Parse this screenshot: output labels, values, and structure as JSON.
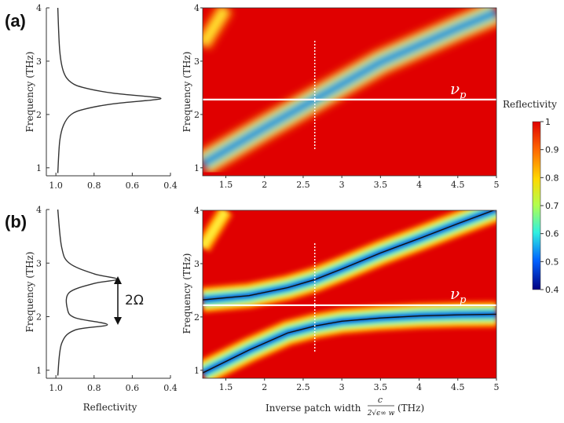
{
  "panel_labels": [
    "(a)",
    "(b)"
  ],
  "nu_p_label": "ν_p",
  "two_omega_label": "2Ω",
  "xlabel_left": "Reflectivity",
  "xlabel_right_main": "Inverse patch width",
  "xlabel_right_unit": "(THz)",
  "xlabel_right_fraction": {
    "num": "c",
    "den": "2√ϵ∞ w"
  },
  "ylabel": "Frequency (THz)",
  "colorbar": {
    "title": "Reflectivity",
    "ticks": [
      "1",
      "0.9",
      "0.8",
      "0.7",
      "0.6",
      "0.5",
      "0.4"
    ],
    "range": [
      0.4,
      1
    ]
  },
  "left_x_ticks": [
    "1.0",
    "0.8",
    "0.6",
    "0.4"
  ],
  "left_y_ticks": [
    "1",
    "2",
    "3",
    "4"
  ],
  "right_x_ticks": [
    "1.5",
    "2",
    "2.5",
    "3",
    "3.5",
    "4",
    "4.5",
    "5"
  ],
  "right_y_ticks": [
    "1",
    "2",
    "3",
    "4"
  ],
  "chart_data": [
    {
      "type": "line",
      "panel": "(a) spectrum",
      "xlabel": "",
      "ylabel": "Frequency (THz)",
      "xlim": [
        1.05,
        0.4
      ],
      "ylim": [
        0.85,
        4
      ],
      "x": [
        0.99,
        0.98,
        0.96,
        0.92,
        0.85,
        0.7,
        0.5,
        0.45,
        0.5,
        0.7,
        0.85,
        0.92,
        0.96,
        0.98,
        0.99
      ],
      "y": [
        0.9,
        1.5,
        1.8,
        2.0,
        2.1,
        2.2,
        2.27,
        2.3,
        2.33,
        2.4,
        2.5,
        2.6,
        2.8,
        3.2,
        4.0
      ]
    },
    {
      "type": "line",
      "panel": "(b) spectrum",
      "xlabel": "Reflectivity",
      "ylabel": "Frequency (THz)",
      "xlim": [
        1.05,
        0.4
      ],
      "ylim": [
        0.85,
        4
      ],
      "x": [
        0.99,
        0.97,
        0.9,
        0.73,
        0.9,
        0.94,
        0.93,
        0.8,
        0.68,
        0.8,
        0.93,
        0.97,
        0.99
      ],
      "y": [
        0.9,
        1.5,
        1.75,
        1.85,
        1.98,
        2.15,
        2.45,
        2.62,
        2.7,
        2.8,
        3.0,
        3.3,
        4.0
      ]
    },
    {
      "type": "heatmap",
      "panel": "(a) map",
      "xlabel": "Inverse patch width (THz)",
      "ylabel": "Frequency (THz)",
      "xlim": [
        1.2,
        5
      ],
      "ylim": [
        0.85,
        4
      ],
      "colorscale_range": [
        0.4,
        1
      ],
      "nu_p": 2.28,
      "marker_x": 2.65,
      "bands": [
        {
          "x": [
            1.2,
            2.0,
            2.65,
            3.5,
            4.5,
            5.0
          ],
          "y": [
            1.07,
            1.75,
            2.28,
            2.98,
            3.62,
            3.92
          ]
        },
        {
          "x": [
            1.2,
            1.5
          ],
          "y": [
            3.3,
            4.0
          ]
        }
      ]
    },
    {
      "type": "heatmap",
      "panel": "(b) map",
      "xlabel": "Inverse patch width (THz)",
      "ylabel": "Frequency (THz)",
      "xlim": [
        1.2,
        5
      ],
      "ylim": [
        0.85,
        4
      ],
      "colorscale_range": [
        0.4,
        1
      ],
      "nu_p": 2.22,
      "marker_x": 2.65,
      "bands": [
        {
          "x": [
            1.2,
            1.8,
            2.3,
            2.65,
            3.0,
            3.5,
            4.0,
            4.5,
            5.0
          ],
          "y": [
            2.32,
            2.4,
            2.55,
            2.7,
            2.9,
            3.2,
            3.47,
            3.75,
            4.02
          ]
        },
        {
          "x": [
            1.2,
            1.8,
            2.3,
            2.65,
            3.0,
            3.5,
            4.0,
            4.5,
            5.0
          ],
          "y": [
            0.95,
            1.38,
            1.7,
            1.83,
            1.92,
            1.98,
            2.02,
            2.04,
            2.05
          ]
        },
        {
          "x": [
            1.2,
            1.5
          ],
          "y": [
            3.3,
            4.0
          ]
        }
      ]
    }
  ]
}
